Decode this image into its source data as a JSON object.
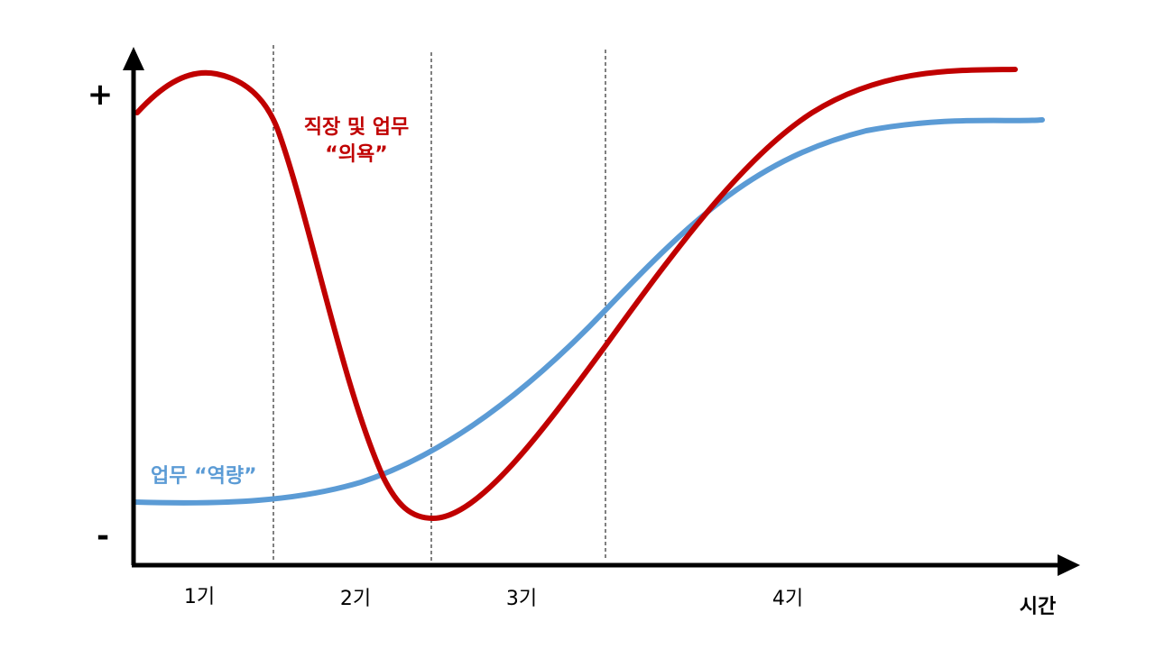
{
  "chart_data": {
    "type": "line",
    "y_axis": {
      "top_label": "+",
      "bottom_label": "-"
    },
    "x_axis": {
      "label": "시간",
      "phases": [
        "1기",
        "2기",
        "3기",
        "4기"
      ]
    },
    "series": [
      {
        "name": "직장 및 업무",
        "name_line2": "“의욕”",
        "color": "#C00000",
        "shape": "starts high, peaks in phase 1, drops to a minimum at the end of phase 2, then rises and plateaus at the highest level in phase 4"
      },
      {
        "name": "업무 “역량”",
        "color": "#5B9BD5",
        "shape": "starts low and flat, rises steadily through phases 2 and 3, then plateaus at a high level in phase 4"
      }
    ]
  }
}
